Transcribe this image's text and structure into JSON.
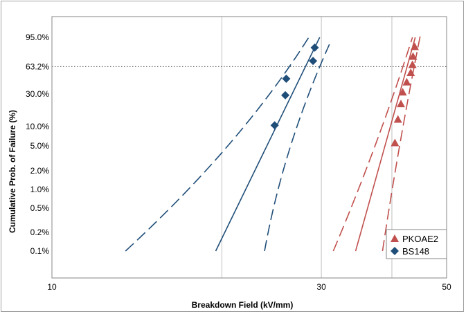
{
  "chart_data": {
    "type": "scatter",
    "xlabel": "Breakdown  Field (kV/mm)",
    "ylabel": "Cumulative Prob. of Failure (%)",
    "x_scale": "log",
    "y_scale": "weibull",
    "xlim": [
      10,
      50
    ],
    "ylim": [
      0.04,
      99
    ],
    "x_ticks": [
      {
        "value": 10,
        "label": "10"
      },
      {
        "value": 20,
        "label": ""
      },
      {
        "value": 30,
        "label": "30"
      },
      {
        "value": 40,
        "label": ""
      },
      {
        "value": 50,
        "label": "50"
      }
    ],
    "y_ticks": [
      {
        "value": 95,
        "label": "95.0%"
      },
      {
        "value": 63.2,
        "label": "63.2%"
      },
      {
        "value": 30,
        "label": "30.0%"
      },
      {
        "value": 10,
        "label": "10.0%"
      },
      {
        "value": 5,
        "label": "5.0%"
      },
      {
        "value": 2,
        "label": "2.0%"
      },
      {
        "value": 1,
        "label": "1.0%"
      },
      {
        "value": 0.5,
        "label": "0.5%"
      },
      {
        "value": 0.2,
        "label": "0.2%"
      },
      {
        "value": 0.1,
        "label": "0.1%"
      }
    ],
    "reference_line": {
      "y": 63.2,
      "style": "dotted"
    },
    "grid": {
      "vertical": true,
      "horizontal": false
    },
    "legend": {
      "position": "bottom-right"
    },
    "series": [
      {
        "name": "PKOAE2",
        "color": "#c0504d",
        "marker": "triangle",
        "points": [
          {
            "x": 40.5,
            "y": 5.6
          },
          {
            "x": 41.0,
            "y": 13.0
          },
          {
            "x": 41.5,
            "y": 22.0
          },
          {
            "x": 41.8,
            "y": 32.0
          },
          {
            "x": 42.5,
            "y": 43.0
          },
          {
            "x": 43.2,
            "y": 55.0
          },
          {
            "x": 43.5,
            "y": 66.0
          },
          {
            "x": 43.6,
            "y": 77.0
          },
          {
            "x": 43.9,
            "y": 88.0
          }
        ],
        "fit": [
          {
            "x": 34.5,
            "y": 0.1
          },
          {
            "x": 44.0,
            "y": 95.0
          }
        ],
        "ci_lower": [
          {
            "x": 31.5,
            "y": 0.1
          },
          {
            "x": 43.5,
            "y": 95.0
          }
        ],
        "ci_upper": [
          {
            "x": 38.5,
            "y": 0.1
          },
          {
            "x": 45.0,
            "y": 97.0
          }
        ]
      },
      {
        "name": "BS148",
        "color": "#1f4e79",
        "marker": "diamond",
        "points": [
          {
            "x": 24.8,
            "y": 10.5
          },
          {
            "x": 25.9,
            "y": 29.0
          },
          {
            "x": 26.0,
            "y": 47.0
          },
          {
            "x": 29.0,
            "y": 71.0
          },
          {
            "x": 29.2,
            "y": 87.0
          }
        ],
        "fit": [
          {
            "x": 19.5,
            "y": 0.1
          },
          {
            "x": 29.8,
            "y": 95.0
          }
        ],
        "ci_lower": [
          {
            "x": 13.5,
            "y": 0.1
          },
          {
            "x": 28.5,
            "y": 95.0
          }
        ],
        "ci_upper": [
          {
            "x": 23.8,
            "y": 0.1
          },
          {
            "x": 31.0,
            "y": 90.0
          }
        ]
      }
    ]
  }
}
